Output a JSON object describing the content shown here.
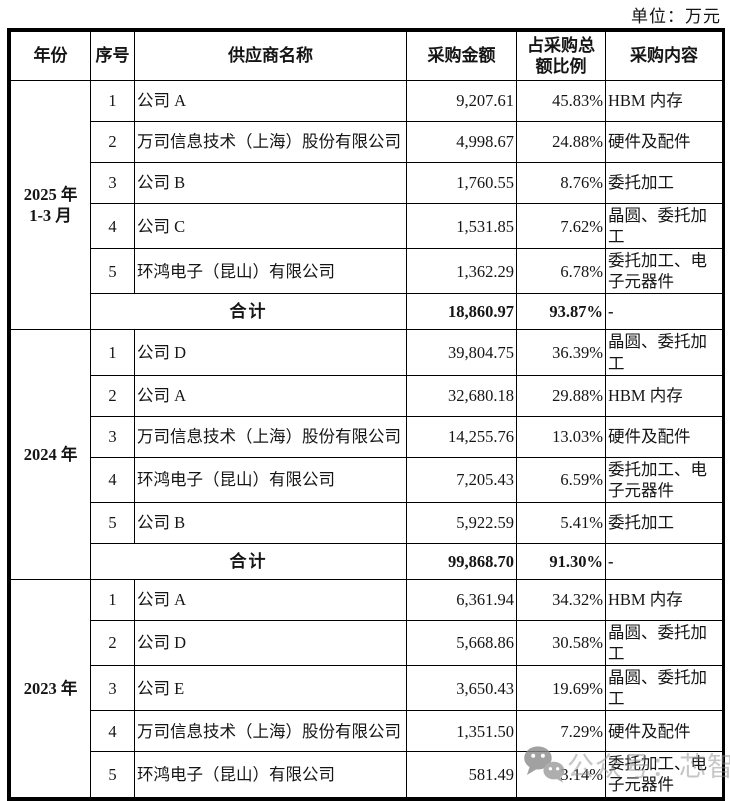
{
  "unit_label": "单位：万元",
  "table": {
    "headers": [
      "年份",
      "序号",
      "供应商名称",
      "采购金额",
      "占采购总额比例",
      "采购内容"
    ],
    "sections": [
      {
        "year_lines": [
          "2025 年",
          "1-3 月"
        ],
        "rows": [
          {
            "no": "1",
            "supplier": "公司 A",
            "amount": "9,207.61",
            "ratio": "45.83%",
            "content": "HBM 内存"
          },
          {
            "no": "2",
            "supplier": "万司信息技术（上海）股份有限公司",
            "amount": "4,998.67",
            "ratio": "24.88%",
            "content": "硬件及配件"
          },
          {
            "no": "3",
            "supplier": "公司 B",
            "amount": "1,760.55",
            "ratio": "8.76%",
            "content": "委托加工"
          },
          {
            "no": "4",
            "supplier": "公司 C",
            "amount": "1,531.85",
            "ratio": "7.62%",
            "content": "晶圆、委托加工"
          },
          {
            "no": "5",
            "supplier": "环鸿电子（昆山）有限公司",
            "amount": "1,362.29",
            "ratio": "6.78%",
            "content": "委托加工、电子元器件"
          }
        ],
        "total": {
          "label": "合计",
          "amount": "18,860.97",
          "ratio": "93.87%",
          "content": "-"
        }
      },
      {
        "year_lines": [
          "2024 年"
        ],
        "rows": [
          {
            "no": "1",
            "supplier": "公司 D",
            "amount": "39,804.75",
            "ratio": "36.39%",
            "content": "晶圆、委托加工"
          },
          {
            "no": "2",
            "supplier": "公司 A",
            "amount": "32,680.18",
            "ratio": "29.88%",
            "content": "HBM 内存"
          },
          {
            "no": "3",
            "supplier": "万司信息技术（上海）股份有限公司",
            "amount": "14,255.76",
            "ratio": "13.03%",
            "content": "硬件及配件"
          },
          {
            "no": "4",
            "supplier": "环鸿电子（昆山）有限公司",
            "amount": "7,205.43",
            "ratio": "6.59%",
            "content": "委托加工、电子元器件"
          },
          {
            "no": "5",
            "supplier": "公司 B",
            "amount": "5,922.59",
            "ratio": "5.41%",
            "content": "委托加工"
          }
        ],
        "total": {
          "label": "合计",
          "amount": "99,868.70",
          "ratio": "91.30%",
          "content": "-"
        }
      },
      {
        "year_lines": [
          "2023 年"
        ],
        "rows": [
          {
            "no": "1",
            "supplier": "公司 A",
            "amount": "6,361.94",
            "ratio": "34.32%",
            "content": "HBM 内存"
          },
          {
            "no": "2",
            "supplier": "公司 D",
            "amount": "5,668.86",
            "ratio": "30.58%",
            "content": "晶圆、委托加工"
          },
          {
            "no": "3",
            "supplier": "公司 E",
            "amount": "3,650.43",
            "ratio": "19.69%",
            "content": "晶圆、委托加工"
          },
          {
            "no": "4",
            "supplier": "万司信息技术（上海）股份有限公司",
            "amount": "1,351.50",
            "ratio": "7.29%",
            "content": "硬件及配件"
          },
          {
            "no": "5",
            "supplier": "环鸿电子（昆山）有限公司",
            "amount": "581.49",
            "ratio": "3.14%",
            "content": "委托加工、电子元器件"
          }
        ],
        "total": null
      }
    ]
  },
  "watermark": {
    "icon": "wechat-icon",
    "text": "公众号：芯智讯",
    "color": "#8e8e8e"
  }
}
